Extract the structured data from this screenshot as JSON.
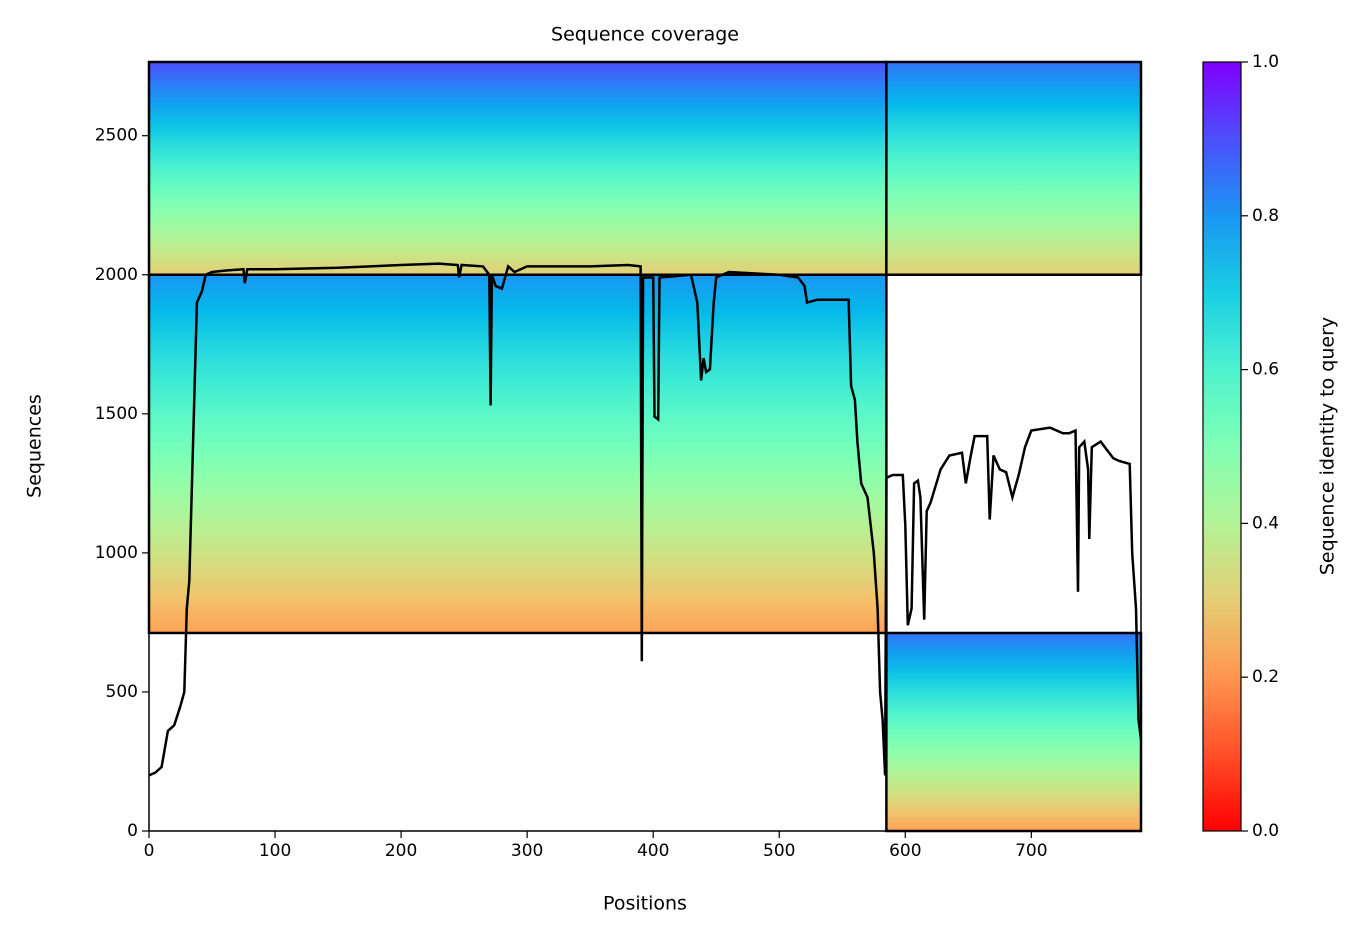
{
  "chart_data": {
    "type": "coverage",
    "title": "Sequence coverage",
    "xlabel": "Positions",
    "ylabel": "Sequences",
    "colorbar_label": "Sequence identity to query",
    "xlim": [
      0,
      787
    ],
    "ylim": [
      0,
      2765
    ],
    "xticks": [
      0,
      100,
      200,
      300,
      400,
      500,
      600,
      700
    ],
    "yticks": [
      0,
      500,
      1000,
      1500,
      2000,
      2500
    ],
    "clim": [
      0,
      1
    ],
    "cticks": [
      {
        "value": 0,
        "label": "0.0"
      },
      {
        "value": 0.2,
        "label": "0.2"
      },
      {
        "value": 0.4,
        "label": "0.4"
      },
      {
        "value": 0.6,
        "label": "0.6"
      },
      {
        "value": 0.8,
        "label": "0.8"
      },
      {
        "value": 1,
        "label": "1.0"
      }
    ],
    "colormap": "rainbow_r",
    "blocks": [
      {
        "x": [
          0,
          585
        ],
        "y": [
          2000,
          2765
        ],
        "identity": [
          0.3,
          0.9
        ]
      },
      {
        "x": [
          585,
          787
        ],
        "y": [
          2000,
          2765
        ],
        "identity": [
          0.3,
          0.85
        ]
      },
      {
        "x": [
          0,
          585
        ],
        "y": [
          712,
          2000
        ],
        "identity": [
          0.22,
          0.8
        ]
      },
      {
        "x": [
          585,
          787
        ],
        "y": [
          0,
          712
        ],
        "identity": [
          0.22,
          0.85
        ]
      }
    ],
    "series": [
      {
        "name": "coverage",
        "color": "#000000",
        "x": [
          0,
          5,
          10,
          15,
          20,
          25,
          28,
          30,
          32,
          35,
          38,
          42,
          45,
          50,
          60,
          75,
          76,
          78,
          100,
          150,
          200,
          230,
          245,
          246,
          248,
          265,
          270,
          271,
          272,
          275,
          280,
          285,
          290,
          300,
          350,
          380,
          390,
          391,
          392,
          400,
          401,
          404,
          405,
          430,
          435,
          438,
          440,
          442,
          445,
          448,
          450,
          460,
          500,
          515,
          520,
          522,
          530,
          555,
          557,
          560,
          562,
          565,
          570,
          575,
          578,
          580,
          582,
          584,
          585,
          590,
          598,
          600,
          602,
          605,
          607,
          610,
          612,
          615,
          617,
          620,
          628,
          635,
          645,
          648,
          652,
          655,
          665,
          667,
          670,
          675,
          680,
          685,
          690,
          695,
          700,
          715,
          725,
          730,
          735,
          737,
          738,
          742,
          745,
          746,
          748,
          755,
          760,
          765,
          770,
          778,
          780,
          783,
          785,
          787
        ],
        "values": [
          200,
          210,
          230,
          360,
          380,
          450,
          500,
          800,
          900,
          1400,
          1900,
          1940,
          2000,
          2010,
          2015,
          2020,
          1970,
          2020,
          2020,
          2025,
          2035,
          2040,
          2035,
          1990,
          2035,
          2030,
          2000,
          1530,
          2000,
          1960,
          1950,
          2030,
          2010,
          2030,
          2030,
          2035,
          2030,
          610,
          1990,
          1990,
          1490,
          1480,
          1990,
          2000,
          1900,
          1620,
          1700,
          1650,
          1660,
          1900,
          1990,
          2010,
          2000,
          1990,
          1960,
          1900,
          1910,
          1910,
          1600,
          1550,
          1400,
          1250,
          1200,
          1000,
          800,
          500,
          400,
          200,
          1270,
          1280,
          1280,
          1100,
          740,
          800,
          1250,
          1260,
          1200,
          760,
          1150,
          1180,
          1300,
          1350,
          1360,
          1250,
          1350,
          1420,
          1420,
          1120,
          1350,
          1300,
          1290,
          1200,
          1280,
          1380,
          1440,
          1450,
          1430,
          1430,
          1440,
          860,
          1380,
          1400,
          1300,
          1050,
          1380,
          1400,
          1370,
          1340,
          1330,
          1320,
          1000,
          800,
          400,
          330
        ]
      }
    ]
  }
}
